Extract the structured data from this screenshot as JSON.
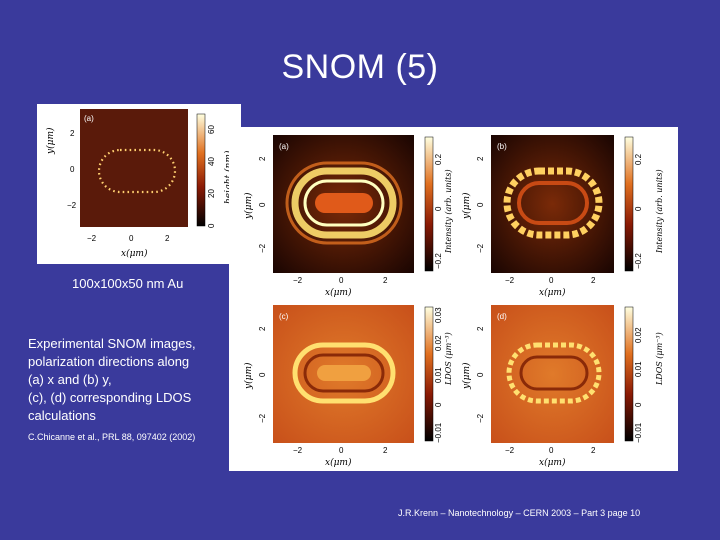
{
  "slide": {
    "title": "SNOM (5)",
    "size_caption": "100x100x50 nm Au",
    "description_lines": [
      "Experimental SNOM images,",
      "polarization directions along",
      "(a) x and (b) y,",
      "(c), (d) corresponding LDOS",
      "calculations"
    ],
    "citation": "C.Chicanne et al., PRL 88, 097402 (2002)",
    "footer": "J.R.Krenn – Nanotechnology – CERN 2003 – Part 3 page 10"
  },
  "topo_figure": {
    "panel_label": "(a)",
    "y_axis_label": "y(μm)",
    "x_axis_label": "x(μm)",
    "x_ticks": [
      "−2",
      "0",
      "2"
    ],
    "y_ticks": [
      "2",
      "0",
      "−2"
    ],
    "colorbar_label": "height (nm)",
    "colorbar_ticks": [
      "0",
      "20",
      "40",
      "60"
    ]
  },
  "sim_figure": {
    "y_axis_label": "y(μm)",
    "x_axis_label": "x(μm)",
    "x_ticks": [
      "−2",
      "0",
      "2"
    ],
    "y_ticks": [
      "2",
      "0",
      "−2"
    ],
    "panels": [
      {
        "label": "(a)",
        "colorbar_label": "Intensity (arb. units)",
        "colorbar_ticks": [
          "−0.2",
          "0",
          "0.2"
        ]
      },
      {
        "label": "(b)",
        "colorbar_label": "Intensity (arb. units)",
        "colorbar_ticks": [
          "−0.2",
          "0",
          "0.2"
        ]
      },
      {
        "label": "(c)",
        "colorbar_label": "LDOS (μm⁻³)",
        "colorbar_ticks": [
          "−0.01",
          "0",
          "0.01",
          "0.02",
          "0.03"
        ]
      },
      {
        "label": "(d)",
        "colorbar_label": "LDOS (μm⁻³)",
        "colorbar_ticks": [
          "−0.01",
          "0",
          "0.01",
          "0.02"
        ]
      }
    ]
  },
  "colors": {
    "background": "#3a3a9c",
    "text": "#ffffff",
    "map_dark": "#2a0a04",
    "map_mid": "#c8501a",
    "map_bright": "#ffffb0"
  }
}
